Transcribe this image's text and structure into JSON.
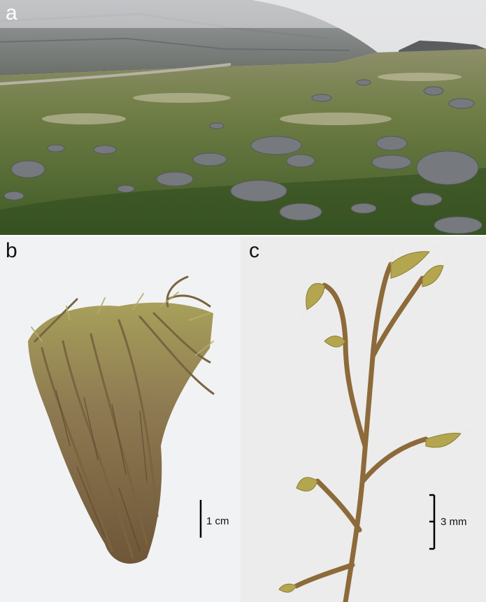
{
  "panels": {
    "a": {
      "label": "a"
    },
    "b": {
      "label": "b",
      "scale_bar": "1 cm"
    },
    "c": {
      "label": "c",
      "scale_bar": "3 mm"
    }
  },
  "colors": {
    "tundra_green": "#4f6b2e",
    "moss_light": "#a8a35a",
    "moss_tan": "#8a7350",
    "rock_grey": "#6f7378",
    "fog": "#d9dbdd"
  }
}
